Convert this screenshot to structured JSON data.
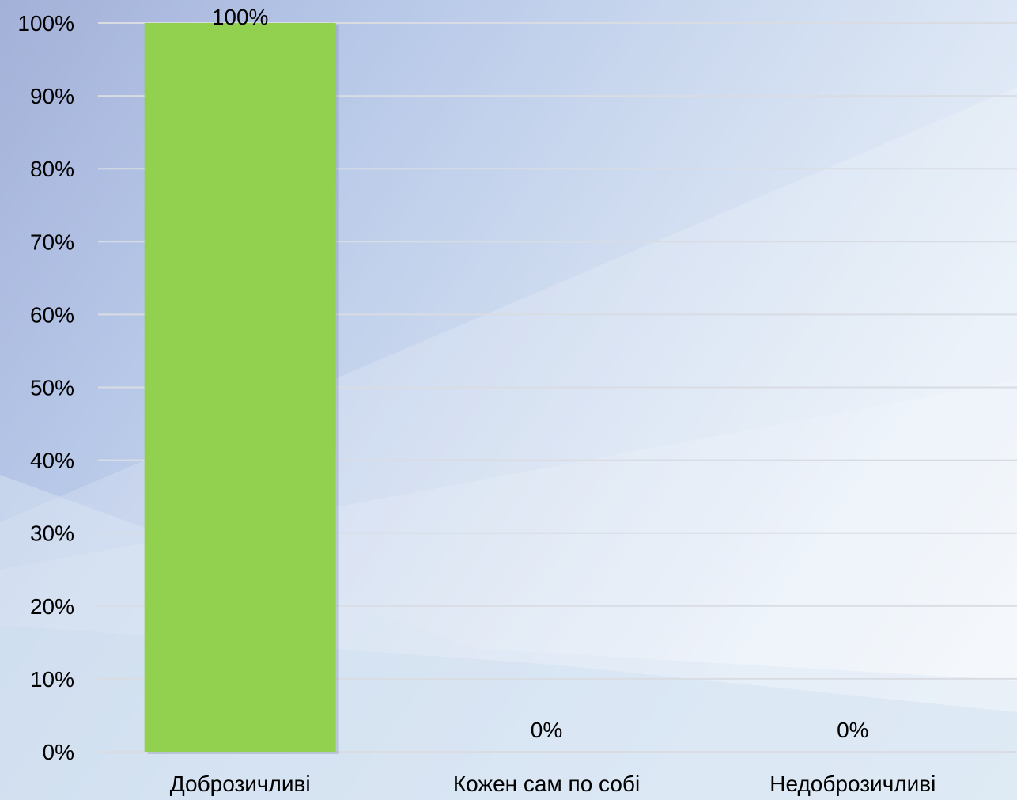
{
  "chart_data": {
    "type": "bar",
    "categories": [
      "Доброзичливі",
      "Кожен сам по собі",
      "Недоброзичливі"
    ],
    "values": [
      100,
      0,
      0
    ],
    "data_labels": [
      "100%",
      "0%",
      "0%"
    ],
    "title": "",
    "xlabel": "",
    "ylabel": "",
    "ylim": [
      0,
      100
    ],
    "y_ticks": [
      0,
      10,
      20,
      30,
      40,
      50,
      60,
      70,
      80,
      90,
      100
    ],
    "y_tick_labels": [
      "0%",
      "10%",
      "20%",
      "30%",
      "40%",
      "50%",
      "60%",
      "70%",
      "80%",
      "90%",
      "100%"
    ],
    "grid": true,
    "legend": "none",
    "bar_color": "#92d050"
  }
}
